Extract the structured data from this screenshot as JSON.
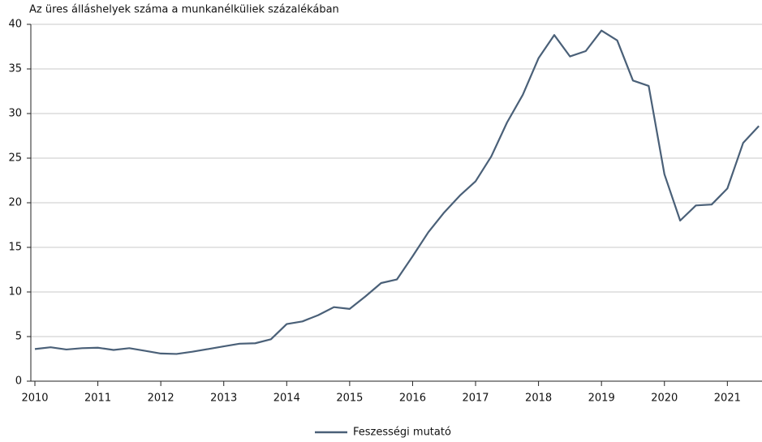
{
  "chart_data": {
    "type": "line",
    "title": "Az üres álláshelyek száma a munkanélküliek százalékában",
    "x": [
      2010,
      2010.25,
      2010.5,
      2010.75,
      2011,
      2011.25,
      2011.5,
      2011.75,
      2012,
      2012.25,
      2012.5,
      2012.75,
      2013,
      2013.25,
      2013.5,
      2013.75,
      2014,
      2014.25,
      2014.5,
      2014.75,
      2015,
      2015.25,
      2015.5,
      2015.75,
      2016,
      2016.25,
      2016.5,
      2016.75,
      2017,
      2017.25,
      2017.5,
      2017.75,
      2018,
      2018.25,
      2018.5,
      2018.75,
      2019,
      2019.25,
      2019.5,
      2019.75,
      2020,
      2020.25,
      2020.5,
      2020.75,
      2021,
      2021.25,
      2021.5
    ],
    "series": [
      {
        "name": "Feszességi mutató",
        "color": "#4a6078",
        "values": [
          3.6,
          3.8,
          3.55,
          3.7,
          3.75,
          3.5,
          3.7,
          3.4,
          3.1,
          3.05,
          3.3,
          3.6,
          3.9,
          4.2,
          4.25,
          4.7,
          6.4,
          6.7,
          7.4,
          8.3,
          8.1,
          9.5,
          11.0,
          11.4,
          14.0,
          16.7,
          18.9,
          20.8,
          22.4,
          25.2,
          29.0,
          32.1,
          36.2,
          38.8,
          36.4,
          37.0,
          39.3,
          38.2,
          33.7,
          33.1,
          23.2,
          18.0,
          19.7,
          19.8,
          21.6,
          26.7,
          28.6
        ]
      }
    ],
    "xlim": [
      2010,
      2021.55
    ],
    "xticks": [
      2010,
      2011,
      2012,
      2013,
      2014,
      2015,
      2016,
      2017,
      2018,
      2019,
      2020,
      2021
    ],
    "ylim": [
      0,
      40
    ],
    "yticks": [
      0,
      5,
      10,
      15,
      20,
      25,
      30,
      35,
      40
    ],
    "grid": true
  }
}
